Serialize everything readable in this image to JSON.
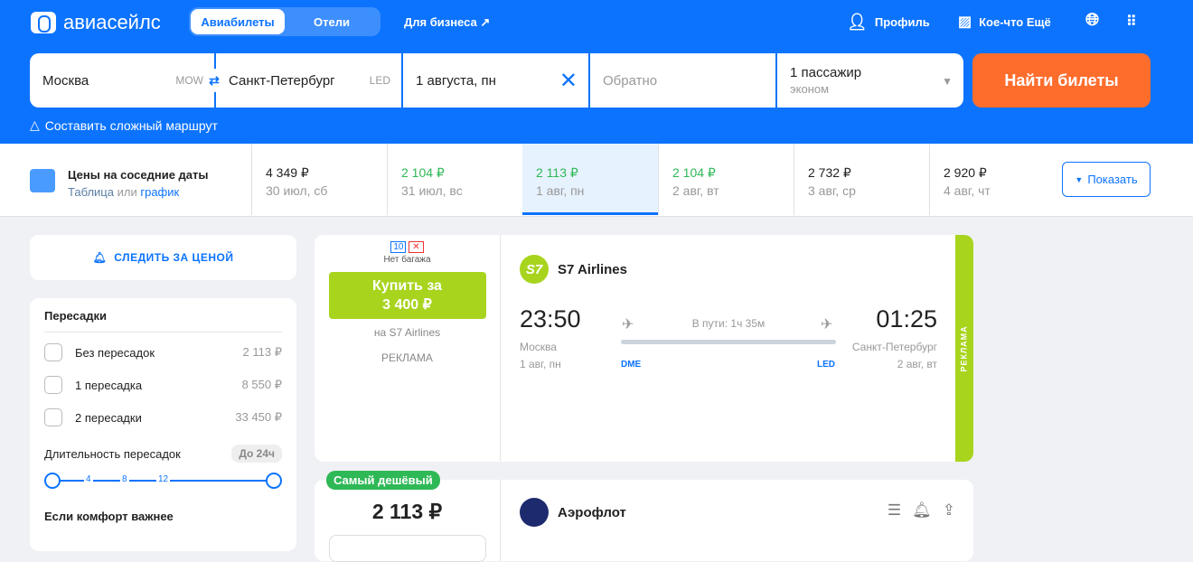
{
  "header": {
    "logo": "авиасейлс",
    "tabs": [
      {
        "label": "Авиабилеты",
        "active": true
      },
      {
        "label": "Отели",
        "active": false
      }
    ],
    "business": "Для бизнеса ↗",
    "profile": "Профиль",
    "more": "Кое-что Ещё"
  },
  "search": {
    "from": "Москва",
    "from_code": "MOW",
    "to": "Санкт-Петербург",
    "to_code": "LED",
    "date": "1 августа, пн",
    "return_placeholder": "Обратно",
    "passengers": "1 пассажир",
    "class": "эконом",
    "find": "Найти билеты",
    "complex": "Составить сложный маршрут"
  },
  "dates": {
    "title": "Цены на соседние даты",
    "table": "Таблица",
    "or": "или",
    "chart": "график",
    "show": "Показать",
    "items": [
      {
        "price": "4 349 ₽",
        "date": "30 июл, сб",
        "green": false
      },
      {
        "price": "2 104 ₽",
        "date": "31 июл, вс",
        "green": true
      },
      {
        "price": "2 113 ₽",
        "date": "1 авг, пн",
        "green": true,
        "selected": true
      },
      {
        "price": "2 104 ₽",
        "date": "2 авг, вт",
        "green": true
      },
      {
        "price": "2 732 ₽",
        "date": "3 авг, ср",
        "green": false
      },
      {
        "price": "2 920 ₽",
        "date": "4 авг, чт",
        "green": false
      }
    ]
  },
  "sidebar": {
    "track": "СЛЕДИТЬ ЗА ЦЕНОЙ",
    "stops_title": "Пересадки",
    "stops": [
      {
        "label": "Без пересадок",
        "price": "2 113 ₽"
      },
      {
        "label": "1 пересадка",
        "price": "8 550 ₽"
      },
      {
        "label": "2 пересадки",
        "price": "33 450 ₽"
      }
    ],
    "duration": "Длительность пересадок",
    "duration_badge": "До 24ч",
    "ticks": [
      "4",
      "8",
      "12"
    ],
    "comfort": "Если комфорт важнее"
  },
  "ad": {
    "baggage": "Нет багажа",
    "hand_kg": "10",
    "buy": "Купить за",
    "price": "3 400 ₽",
    "on": "на S7 Airlines",
    "ad": "РЕКЛАМА",
    "airline": "S7 Airlines",
    "dep_time": "23:50",
    "arr_time": "01:25",
    "duration": "В пути: 1ч 35м",
    "dep_city": "Москва",
    "arr_city": "Санкт-Петербург",
    "dep_date": "1 авг, пн",
    "arr_date": "2 авг, вт",
    "dep_code": "DME",
    "arr_code": "LED",
    "side": "РЕКЛАМА"
  },
  "ticket": {
    "badge": "Самый дешёвый",
    "price": "2 113 ₽",
    "airline": "Аэрофлот"
  },
  "colors": {
    "brand": "#0c73fe",
    "cta": "#ff6d2d",
    "s7": "#a8d41e",
    "cheap": "#2fb856"
  }
}
